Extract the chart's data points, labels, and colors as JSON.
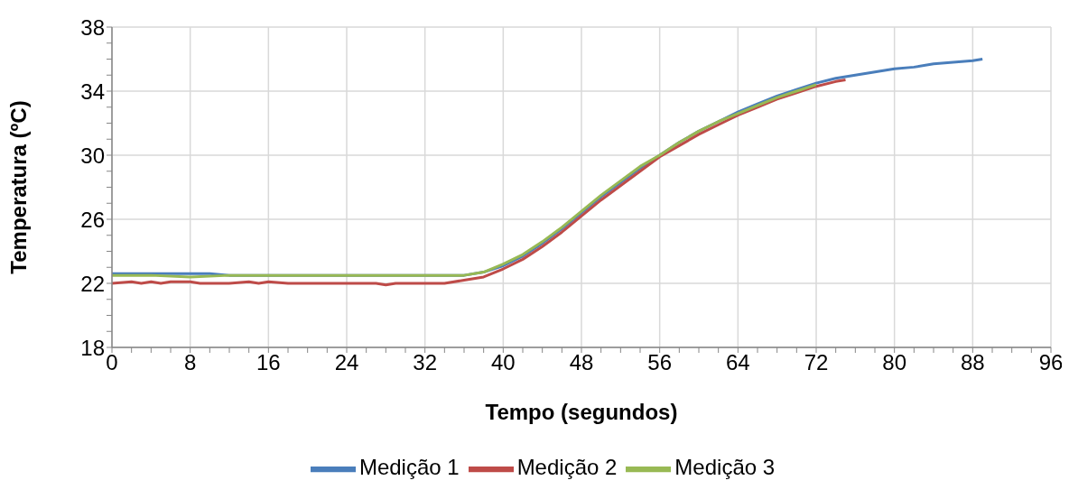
{
  "chart_data": {
    "type": "line",
    "xlabel": "Tempo (segundos)",
    "ylabel": "Temperatura (ºC)",
    "xlim": [
      0,
      96
    ],
    "ylim": [
      18,
      38
    ],
    "xticks": [
      0,
      {
        "value": 2,
        "label": null
      },
      {
        "value": 4,
        "label": null
      },
      {
        "value": 6,
        "label": null
      },
      8,
      {
        "value": 10,
        "label": null
      },
      {
        "value": 12,
        "label": null
      },
      {
        "value": 14,
        "label": null
      },
      16,
      {
        "value": 18,
        "label": null
      },
      {
        "value": 20,
        "label": null
      },
      {
        "value": 22,
        "label": null
      },
      24,
      {
        "value": 26,
        "label": null
      },
      {
        "value": 28,
        "label": null
      },
      {
        "value": 30,
        "label": null
      },
      32,
      {
        "value": 34,
        "label": null
      },
      {
        "value": 36,
        "label": null
      },
      {
        "value": 38,
        "label": null
      },
      40,
      {
        "value": 42,
        "label": null
      },
      {
        "value": 44,
        "label": null
      },
      {
        "value": 46,
        "label": null
      },
      48,
      {
        "value": 50,
        "label": null
      },
      {
        "value": 52,
        "label": null
      },
      {
        "value": 54,
        "label": null
      },
      56,
      {
        "value": 58,
        "label": null
      },
      {
        "value": 60,
        "label": null
      },
      {
        "value": 62,
        "label": null
      },
      64,
      {
        "value": 66,
        "label": null
      },
      {
        "value": 68,
        "label": null
      },
      {
        "value": 70,
        "label": null
      },
      72,
      {
        "value": 74,
        "label": null
      },
      {
        "value": 76,
        "label": null
      },
      {
        "value": 78,
        "label": null
      },
      80,
      {
        "value": 82,
        "label": null
      },
      {
        "value": 84,
        "label": null
      },
      {
        "value": 86,
        "label": null
      },
      88,
      {
        "value": 90,
        "label": null
      },
      {
        "value": 92,
        "label": null
      },
      {
        "value": 94,
        "label": null
      },
      96
    ],
    "yticks": [
      18,
      {
        "value": 19,
        "label": null
      },
      {
        "value": 20,
        "label": null
      },
      {
        "value": 21,
        "label": null
      },
      22,
      {
        "value": 23,
        "label": null
      },
      {
        "value": 24,
        "label": null
      },
      {
        "value": 25,
        "label": null
      },
      26,
      {
        "value": 27,
        "label": null
      },
      {
        "value": 28,
        "label": null
      },
      {
        "value": 29,
        "label": null
      },
      30,
      {
        "value": 31,
        "label": null
      },
      {
        "value": 32,
        "label": null
      },
      {
        "value": 33,
        "label": null
      },
      34,
      {
        "value": 35,
        "label": null
      },
      {
        "value": 36,
        "label": null
      },
      {
        "value": 37,
        "label": null
      },
      38
    ],
    "grid": true,
    "legend": "bottom",
    "marker": "none",
    "line_style": "solid",
    "series": [
      {
        "name": "Medição 1",
        "color": "#4a7ebb",
        "x": [
          0,
          4,
          8,
          10,
          12,
          16,
          24,
          32,
          36,
          38,
          40,
          42,
          44,
          46,
          48,
          50,
          52,
          54,
          56,
          58,
          60,
          62,
          64,
          66,
          68,
          70,
          72,
          74,
          76,
          78,
          80,
          82,
          84,
          86,
          88,
          89
        ],
        "values": [
          22.6,
          22.6,
          22.6,
          22.6,
          22.5,
          22.5,
          22.5,
          22.5,
          22.5,
          22.7,
          23.1,
          23.7,
          24.5,
          25.4,
          26.4,
          27.4,
          28.3,
          29.2,
          30.0,
          30.8,
          31.5,
          32.1,
          32.7,
          33.2,
          33.7,
          34.1,
          34.5,
          34.8,
          35.0,
          35.2,
          35.4,
          35.5,
          35.7,
          35.8,
          35.9,
          36.0
        ]
      },
      {
        "name": "Medição 2",
        "color": "#be4b48",
        "x": [
          0,
          2,
          3,
          4,
          5,
          6,
          8,
          9,
          12,
          14,
          15,
          16,
          18,
          24,
          27,
          28,
          29,
          34,
          36,
          38,
          40,
          42,
          44,
          46,
          48,
          50,
          52,
          54,
          56,
          58,
          60,
          62,
          64,
          66,
          68,
          70,
          72,
          74,
          75
        ],
        "values": [
          22.0,
          22.1,
          22.0,
          22.1,
          22.0,
          22.1,
          22.1,
          22.0,
          22.0,
          22.1,
          22.0,
          22.1,
          22.0,
          22.0,
          22.0,
          21.9,
          22.0,
          22.0,
          22.2,
          22.4,
          22.9,
          23.5,
          24.3,
          25.2,
          26.2,
          27.2,
          28.1,
          29.0,
          29.9,
          30.6,
          31.3,
          31.9,
          32.5,
          33.0,
          33.5,
          33.9,
          34.3,
          34.6,
          34.7
        ]
      },
      {
        "name": "Medição 3",
        "color": "#98b954",
        "x": [
          0,
          4,
          8,
          12,
          16,
          24,
          32,
          36,
          38,
          40,
          42,
          44,
          46,
          48,
          50,
          52,
          54,
          56,
          58,
          60,
          62,
          64,
          66,
          68,
          70,
          72
        ],
        "values": [
          22.5,
          22.5,
          22.4,
          22.5,
          22.5,
          22.5,
          22.5,
          22.5,
          22.7,
          23.2,
          23.8,
          24.6,
          25.5,
          26.5,
          27.5,
          28.4,
          29.3,
          30.0,
          30.8,
          31.5,
          32.1,
          32.6,
          33.1,
          33.6,
          34.0,
          34.4
        ]
      }
    ]
  }
}
